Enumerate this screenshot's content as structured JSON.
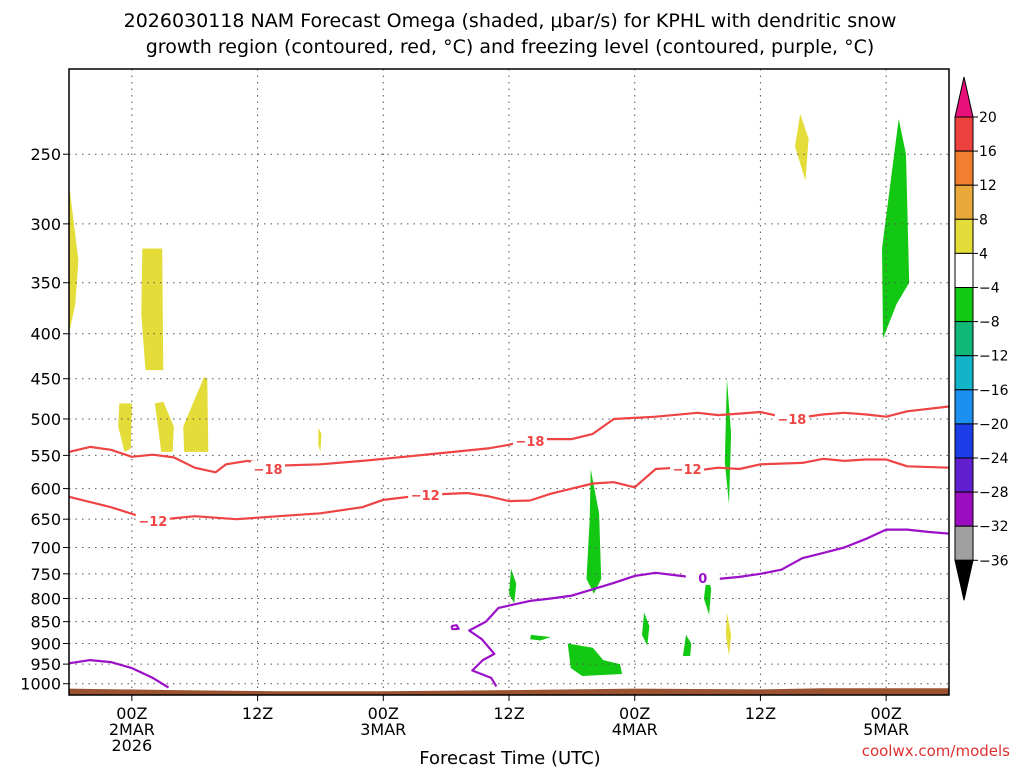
{
  "chart_data": {
    "type": "heatmap",
    "title": "2026030118 NAM Forecast Omega (shaded, μbar/s) for KPHL with dendritic snow",
    "title_line2": "growth region (contoured, red, °C) and freezing level (contoured, purple, °C)",
    "xlabel": "Forecast Time (UTC)",
    "ylabel": "",
    "credit": "coolwx.com/models",
    "x_unit": "forecast hour from 2026-03-01 18Z",
    "xlim": [
      0,
      84
    ],
    "ylim": [
      1030,
      200
    ],
    "y_log": true,
    "grid": true,
    "x_ticks": [
      {
        "x": 6,
        "label": "00Z",
        "line2": "2MAR",
        "line3": "2026"
      },
      {
        "x": 18,
        "label": "12Z",
        "line2": "",
        "line3": ""
      },
      {
        "x": 30,
        "label": "00Z",
        "line2": "3MAR",
        "line3": ""
      },
      {
        "x": 42,
        "label": "12Z",
        "line2": "",
        "line3": ""
      },
      {
        "x": 54,
        "label": "00Z",
        "line2": "4MAR",
        "line3": ""
      },
      {
        "x": 66,
        "label": "12Z",
        "line2": "",
        "line3": ""
      },
      {
        "x": 78,
        "label": "00Z",
        "line2": "5MAR",
        "line3": ""
      }
    ],
    "y_ticks": [
      250,
      300,
      350,
      400,
      450,
      500,
      550,
      600,
      650,
      700,
      750,
      800,
      850,
      900,
      950,
      1000
    ],
    "colorbar": {
      "levels": [
        "20",
        "16",
        "12",
        "8",
        "4",
        "−4",
        "−8",
        "−12",
        "−16",
        "−20",
        "−24",
        "−28",
        "−32",
        "−36"
      ],
      "colors": [
        "#ef4040",
        "#f08030",
        "#e8a83a",
        "#e4dc38",
        "#ffffff",
        "#13c813",
        "#10b878",
        "#12b4c8",
        "#1d8ff0",
        "#1c3ce8",
        "#6020d0",
        "#9b0ec0",
        "#a0a0a0"
      ],
      "top_color": "#e8107a",
      "bottom_color": "#000000"
    },
    "shaded_regions": [
      {
        "value": 6,
        "color": "#e4dc38",
        "points": [
          [
            0,
            270
          ],
          [
            0.9,
            330
          ],
          [
            0.6,
            370
          ],
          [
            0,
            400
          ]
        ]
      },
      {
        "value": 6,
        "color": "#e4dc38",
        "points": [
          [
            7,
            320
          ],
          [
            8.9,
            320
          ],
          [
            9.0,
            440
          ],
          [
            7.3,
            440
          ],
          [
            6.9,
            380
          ]
        ]
      },
      {
        "value": 6,
        "color": "#e4dc38",
        "points": [
          [
            4.8,
            480
          ],
          [
            6.0,
            480
          ],
          [
            5.9,
            540
          ],
          [
            5.3,
            545
          ],
          [
            4.7,
            510
          ]
        ]
      },
      {
        "value": 6,
        "color": "#e4dc38",
        "points": [
          [
            8.2,
            480
          ],
          [
            9.0,
            478
          ],
          [
            10.0,
            510
          ],
          [
            9.9,
            545
          ],
          [
            8.8,
            545
          ],
          [
            8.5,
            510
          ]
        ]
      },
      {
        "value": 6,
        "color": "#e4dc38",
        "points": [
          [
            10.9,
            510
          ],
          [
            12.9,
            448
          ],
          [
            13.2,
            450
          ],
          [
            13.3,
            545
          ],
          [
            11.0,
            545
          ]
        ]
      },
      {
        "value": 6,
        "color": "#e4dc38",
        "points": [
          [
            23.8,
            512
          ],
          [
            24.1,
            520
          ],
          [
            24.0,
            545
          ],
          [
            23.8,
            535
          ]
        ]
      },
      {
        "value": 6,
        "color": "#e4dc38",
        "points": [
          [
            69.8,
            225
          ],
          [
            70.6,
            240
          ],
          [
            70.3,
            268
          ],
          [
            69.3,
            245
          ]
        ]
      },
      {
        "value": 6,
        "color": "#e4dc38",
        "points": [
          [
            62.8,
            830
          ],
          [
            63.2,
            880
          ],
          [
            63.0,
            930
          ],
          [
            62.7,
            880
          ]
        ]
      },
      {
        "value": -6,
        "color": "#13c813",
        "points": [
          [
            79.2,
            228
          ],
          [
            79.9,
            250
          ],
          [
            80.2,
            350
          ],
          [
            79.0,
            370
          ],
          [
            77.7,
            405
          ],
          [
            77.6,
            320
          ]
        ]
      },
      {
        "value": -6,
        "color": "#13c813",
        "points": [
          [
            62.8,
            450
          ],
          [
            63.2,
            520
          ],
          [
            63.0,
            625
          ],
          [
            62.6,
            560
          ]
        ]
      },
      {
        "value": -6,
        "color": "#13c813",
        "points": [
          [
            49.8,
            570
          ],
          [
            50.6,
            640
          ],
          [
            50.8,
            760
          ],
          [
            50.1,
            790
          ],
          [
            49.4,
            760
          ],
          [
            49.7,
            650
          ]
        ]
      },
      {
        "value": -6,
        "color": "#13c813",
        "points": [
          [
            42.2,
            740
          ],
          [
            42.7,
            770
          ],
          [
            42.5,
            810
          ],
          [
            42.0,
            790
          ]
        ]
      },
      {
        "value": -6,
        "color": "#13c813",
        "points": [
          [
            60.9,
            750
          ],
          [
            61.3,
            780
          ],
          [
            61.1,
            835
          ],
          [
            60.6,
            800
          ]
        ]
      },
      {
        "value": -6,
        "color": "#13c813",
        "points": [
          [
            54.9,
            830
          ],
          [
            55.4,
            860
          ],
          [
            55.2,
            905
          ],
          [
            54.7,
            880
          ]
        ]
      },
      {
        "value": -6,
        "color": "#13c813",
        "points": [
          [
            58.9,
            880
          ],
          [
            59.4,
            900
          ],
          [
            59.3,
            930
          ],
          [
            58.6,
            930
          ]
        ]
      },
      {
        "value": -6,
        "color": "#13c813",
        "points": [
          [
            44.1,
            880
          ],
          [
            46.0,
            885
          ],
          [
            45.0,
            893
          ],
          [
            44.0,
            890
          ]
        ]
      },
      {
        "value": -6,
        "color": "#13c813",
        "points": [
          [
            47.6,
            900
          ],
          [
            50.0,
            910
          ],
          [
            51.0,
            940
          ],
          [
            52.6,
            950
          ],
          [
            52.8,
            975
          ],
          [
            49.0,
            980
          ],
          [
            47.9,
            960
          ]
        ]
      }
    ],
    "ground": {
      "color": "#9b5230",
      "pressures": [
        [
          0,
          1013
        ],
        [
          10,
          1017
        ],
        [
          20,
          1020
        ],
        [
          30,
          1020
        ],
        [
          42,
          1017
        ],
        [
          54,
          1013
        ],
        [
          66,
          1015
        ],
        [
          72,
          1012
        ],
        [
          84,
          1012
        ]
      ]
    },
    "contours": [
      {
        "name": "-18 °C",
        "color": "#ee4444",
        "label": "−18",
        "label_at": [
          [
            19,
            570
          ],
          [
            44,
            530
          ],
          [
            69,
            500
          ]
        ],
        "points": [
          [
            0,
            545
          ],
          [
            2,
            538
          ],
          [
            4,
            542
          ],
          [
            6,
            552
          ],
          [
            8,
            549
          ],
          [
            10,
            553
          ],
          [
            12,
            568
          ],
          [
            14,
            575
          ],
          [
            15,
            563
          ],
          [
            17,
            558
          ],
          [
            20,
            565
          ],
          [
            24,
            563
          ],
          [
            28,
            558
          ],
          [
            32,
            552
          ],
          [
            36,
            546
          ],
          [
            40,
            540
          ],
          [
            42,
            535
          ],
          [
            44,
            527
          ],
          [
            48,
            527
          ],
          [
            50,
            520
          ],
          [
            52,
            500
          ],
          [
            56,
            497
          ],
          [
            60,
            492
          ],
          [
            62,
            495
          ],
          [
            64,
            493
          ],
          [
            66,
            491
          ],
          [
            68,
            497
          ],
          [
            70,
            498
          ],
          [
            72,
            494
          ],
          [
            74,
            492
          ],
          [
            76,
            494
          ],
          [
            78,
            497
          ],
          [
            80,
            490
          ],
          [
            84,
            484
          ]
        ]
      },
      {
        "name": "-12 °C",
        "color": "#ee4444",
        "label": "−12",
        "label_at": [
          [
            8,
            653
          ],
          [
            34,
            610
          ],
          [
            59,
            570
          ]
        ],
        "points": [
          [
            0,
            613
          ],
          [
            4,
            630
          ],
          [
            8,
            652
          ],
          [
            12,
            645
          ],
          [
            16,
            650
          ],
          [
            20,
            645
          ],
          [
            24,
            640
          ],
          [
            28,
            630
          ],
          [
            30,
            618
          ],
          [
            34,
            610
          ],
          [
            38,
            607
          ],
          [
            40,
            612
          ],
          [
            42,
            620
          ],
          [
            44,
            619
          ],
          [
            46,
            608
          ],
          [
            48,
            600
          ],
          [
            50,
            592
          ],
          [
            52,
            590
          ],
          [
            54,
            598
          ],
          [
            56,
            570
          ],
          [
            58,
            568
          ],
          [
            60,
            572
          ],
          [
            62,
            568
          ],
          [
            64,
            570
          ],
          [
            66,
            563
          ],
          [
            70,
            561
          ],
          [
            72,
            555
          ],
          [
            74,
            558
          ],
          [
            76,
            556
          ],
          [
            78,
            556
          ],
          [
            80,
            566
          ],
          [
            84,
            568
          ]
        ]
      },
      {
        "name": "0 °C",
        "color": "#9b10c8",
        "label": "0",
        "label_at": [
          [
            60.5,
            758
          ]
        ],
        "points": [
          [
            40.8,
            1007
          ],
          [
            40.3,
            985
          ],
          [
            38.5,
            966
          ],
          [
            39.5,
            940
          ],
          [
            40.6,
            925
          ],
          [
            39.4,
            890
          ],
          [
            38.2,
            870
          ],
          [
            39.8,
            850
          ],
          [
            41.0,
            820
          ],
          [
            44,
            805
          ],
          [
            46,
            800
          ],
          [
            48,
            794
          ],
          [
            52,
            768
          ],
          [
            54,
            754
          ],
          [
            56,
            748
          ],
          [
            58,
            753
          ],
          [
            60,
            758
          ],
          [
            62,
            760
          ],
          [
            64,
            756
          ],
          [
            66,
            750
          ],
          [
            68,
            742
          ],
          [
            70,
            720
          ],
          [
            72,
            710
          ],
          [
            74,
            700
          ],
          [
            76,
            685
          ],
          [
            78,
            668
          ],
          [
            80,
            668
          ],
          [
            82,
            672
          ],
          [
            84,
            675
          ]
        ]
      },
      {
        "name": "0 °C low",
        "color": "#9b10c8",
        "label": "",
        "label_at": [],
        "points": [
          [
            0,
            948
          ],
          [
            2,
            940
          ],
          [
            4,
            945
          ],
          [
            6,
            960
          ],
          [
            8,
            985
          ],
          [
            9.5,
            1010
          ]
        ]
      },
      {
        "name": "0 °C speck",
        "color": "#9b10c8",
        "label": "",
        "label_at": [],
        "points": [
          [
            36.5,
            860
          ],
          [
            37.0,
            858
          ],
          [
            37.2,
            866
          ],
          [
            36.6,
            867
          ],
          [
            36.5,
            860
          ]
        ]
      }
    ]
  }
}
